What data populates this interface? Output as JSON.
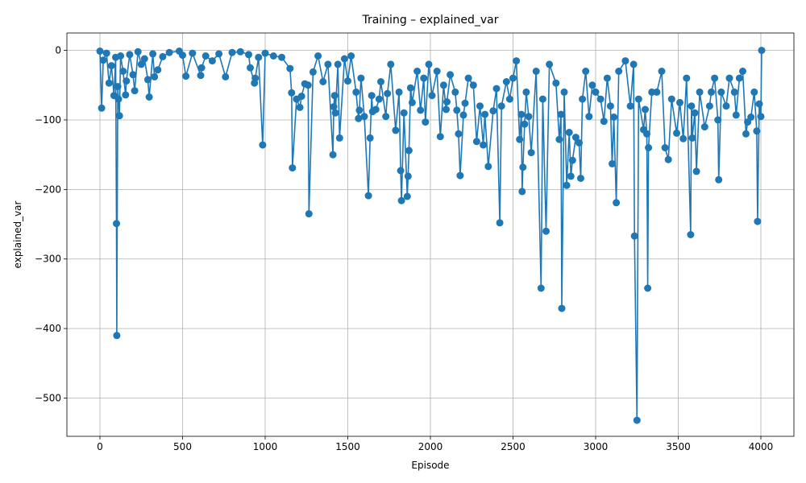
{
  "chart_data": {
    "type": "line",
    "title": "Training – explained_var",
    "xlabel": "Episode",
    "ylabel": "explained_var",
    "xlim": [
      -200,
      4200
    ],
    "ylim": [
      -555,
      25
    ],
    "xticks": [
      0,
      500,
      1000,
      1500,
      2000,
      2500,
      3000,
      3500,
      4000
    ],
    "yticks": [
      0,
      -100,
      -200,
      -300,
      -400,
      -500
    ],
    "xtick_labels": [
      "0",
      "500",
      "1000",
      "1500",
      "2000",
      "2500",
      "3000",
      "3500",
      "4000"
    ],
    "ytick_labels": [
      "0",
      "−100",
      "−200",
      "−300",
      "−400",
      "−500"
    ],
    "grid": true,
    "series": [
      {
        "color": "#1f77b4",
        "marker": "circle",
        "points": [
          [
            0,
            -1
          ],
          [
            10,
            -83
          ],
          [
            20,
            -14
          ],
          [
            40,
            -4
          ],
          [
            55,
            -47
          ],
          [
            70,
            -22
          ],
          [
            85,
            -65
          ],
          [
            95,
            -10
          ],
          [
            100,
            -249
          ],
          [
            102,
            -410
          ],
          [
            108,
            -52
          ],
          [
            112,
            -70
          ],
          [
            118,
            -94
          ],
          [
            125,
            -8
          ],
          [
            140,
            -30
          ],
          [
            155,
            -64
          ],
          [
            160,
            -44
          ],
          [
            180,
            -6
          ],
          [
            200,
            -35
          ],
          [
            210,
            -58
          ],
          [
            230,
            -2
          ],
          [
            250,
            -20
          ],
          [
            270,
            -12
          ],
          [
            290,
            -42
          ],
          [
            298,
            -67
          ],
          [
            320,
            -5
          ],
          [
            330,
            -38
          ],
          [
            350,
            -28
          ],
          [
            380,
            -9
          ],
          [
            420,
            -3
          ],
          [
            480,
            -1
          ],
          [
            500,
            -7
          ],
          [
            520,
            -37
          ],
          [
            560,
            -4
          ],
          [
            610,
            -36
          ],
          [
            615,
            -25
          ],
          [
            640,
            -8
          ],
          [
            680,
            -15
          ],
          [
            720,
            -5
          ],
          [
            760,
            -38
          ],
          [
            800,
            -3
          ],
          [
            850,
            -2
          ],
          [
            900,
            -6
          ],
          [
            910,
            -25
          ],
          [
            935,
            -47
          ],
          [
            940,
            -40
          ],
          [
            960,
            -10
          ],
          [
            985,
            -136
          ],
          [
            1000,
            -4
          ],
          [
            1050,
            -8
          ],
          [
            1100,
            -10
          ],
          [
            1150,
            -26
          ],
          [
            1160,
            -61
          ],
          [
            1165,
            -169
          ],
          [
            1190,
            -70
          ],
          [
            1210,
            -82
          ],
          [
            1220,
            -66
          ],
          [
            1240,
            -48
          ],
          [
            1260,
            -50
          ],
          [
            1265,
            -235
          ],
          [
            1290,
            -31
          ],
          [
            1320,
            -8
          ],
          [
            1350,
            -45
          ],
          [
            1380,
            -20
          ],
          [
            1410,
            -150
          ],
          [
            1415,
            -81
          ],
          [
            1420,
            -65
          ],
          [
            1425,
            -90
          ],
          [
            1440,
            -20
          ],
          [
            1450,
            -126
          ],
          [
            1480,
            -12
          ],
          [
            1500,
            -44
          ],
          [
            1520,
            -8
          ],
          [
            1550,
            -60
          ],
          [
            1565,
            -98
          ],
          [
            1570,
            -86
          ],
          [
            1580,
            -40
          ],
          [
            1600,
            -95
          ],
          [
            1625,
            -209
          ],
          [
            1635,
            -126
          ],
          [
            1645,
            -65
          ],
          [
            1650,
            -88
          ],
          [
            1670,
            -85
          ],
          [
            1690,
            -70
          ],
          [
            1700,
            -45
          ],
          [
            1730,
            -95
          ],
          [
            1740,
            -62
          ],
          [
            1760,
            -20
          ],
          [
            1790,
            -115
          ],
          [
            1810,
            -60
          ],
          [
            1820,
            -173
          ],
          [
            1825,
            -216
          ],
          [
            1840,
            -90
          ],
          [
            1860,
            -210
          ],
          [
            1865,
            -181
          ],
          [
            1870,
            -144
          ],
          [
            1880,
            -54
          ],
          [
            1890,
            -75
          ],
          [
            1920,
            -30
          ],
          [
            1940,
            -86
          ],
          [
            1960,
            -40
          ],
          [
            1970,
            -103
          ],
          [
            1990,
            -20
          ],
          [
            2010,
            -65
          ],
          [
            2040,
            -30
          ],
          [
            2060,
            -124
          ],
          [
            2080,
            -50
          ],
          [
            2095,
            -85
          ],
          [
            2100,
            -74
          ],
          [
            2120,
            -35
          ],
          [
            2150,
            -60
          ],
          [
            2160,
            -86
          ],
          [
            2170,
            -120
          ],
          [
            2180,
            -180
          ],
          [
            2200,
            -93
          ],
          [
            2210,
            -76
          ],
          [
            2230,
            -40
          ],
          [
            2260,
            -50
          ],
          [
            2280,
            -131
          ],
          [
            2300,
            -80
          ],
          [
            2320,
            -136
          ],
          [
            2330,
            -92
          ],
          [
            2350,
            -167
          ],
          [
            2380,
            -87
          ],
          [
            2400,
            -55
          ],
          [
            2420,
            -248
          ],
          [
            2430,
            -80
          ],
          [
            2460,
            -45
          ],
          [
            2480,
            -70
          ],
          [
            2500,
            -40
          ],
          [
            2520,
            -15
          ],
          [
            2540,
            -128
          ],
          [
            2550,
            -92
          ],
          [
            2555,
            -203
          ],
          [
            2560,
            -168
          ],
          [
            2570,
            -106
          ],
          [
            2580,
            -60
          ],
          [
            2595,
            -95
          ],
          [
            2610,
            -147
          ],
          [
            2640,
            -30
          ],
          [
            2670,
            -342
          ],
          [
            2680,
            -70
          ],
          [
            2700,
            -260
          ],
          [
            2720,
            -20
          ],
          [
            2760,
            -47
          ],
          [
            2780,
            -128
          ],
          [
            2790,
            -92
          ],
          [
            2795,
            -371
          ],
          [
            2810,
            -60
          ],
          [
            2825,
            -194
          ],
          [
            2840,
            -118
          ],
          [
            2850,
            -181
          ],
          [
            2860,
            -158
          ],
          [
            2880,
            -125
          ],
          [
            2900,
            -133
          ],
          [
            2910,
            -184
          ],
          [
            2920,
            -70
          ],
          [
            2940,
            -30
          ],
          [
            2960,
            -95
          ],
          [
            2980,
            -50
          ],
          [
            3000,
            -60
          ],
          [
            3030,
            -70
          ],
          [
            3050,
            -102
          ],
          [
            3070,
            -40
          ],
          [
            3090,
            -80
          ],
          [
            3100,
            -163
          ],
          [
            3110,
            -96
          ],
          [
            3125,
            -219
          ],
          [
            3140,
            -30
          ],
          [
            3180,
            -15
          ],
          [
            3210,
            -80
          ],
          [
            3230,
            -20
          ],
          [
            3235,
            -267
          ],
          [
            3250,
            -532
          ],
          [
            3260,
            -70
          ],
          [
            3290,
            -114
          ],
          [
            3300,
            -85
          ],
          [
            3310,
            -120
          ],
          [
            3315,
            -342
          ],
          [
            3320,
            -140
          ],
          [
            3340,
            -60
          ],
          [
            3370,
            -60
          ],
          [
            3400,
            -30
          ],
          [
            3420,
            -140
          ],
          [
            3440,
            -157
          ],
          [
            3460,
            -70
          ],
          [
            3490,
            -119
          ],
          [
            3510,
            -75
          ],
          [
            3530,
            -127
          ],
          [
            3550,
            -40
          ],
          [
            3575,
            -265
          ],
          [
            3580,
            -80
          ],
          [
            3585,
            -126
          ],
          [
            3600,
            -90
          ],
          [
            3610,
            -174
          ],
          [
            3630,
            -60
          ],
          [
            3660,
            -110
          ],
          [
            3690,
            -80
          ],
          [
            3700,
            -60
          ],
          [
            3720,
            -40
          ],
          [
            3740,
            -100
          ],
          [
            3745,
            -186
          ],
          [
            3760,
            -60
          ],
          [
            3790,
            -80
          ],
          [
            3810,
            -40
          ],
          [
            3840,
            -60
          ],
          [
            3850,
            -93
          ],
          [
            3870,
            -40
          ],
          [
            3890,
            -30
          ],
          [
            3910,
            -120
          ],
          [
            3920,
            -103
          ],
          [
            3940,
            -96
          ],
          [
            3960,
            -60
          ],
          [
            3975,
            -116
          ],
          [
            3980,
            -246
          ],
          [
            3990,
            -77
          ],
          [
            4000,
            -95
          ],
          [
            4005,
            0
          ]
        ]
      }
    ]
  }
}
